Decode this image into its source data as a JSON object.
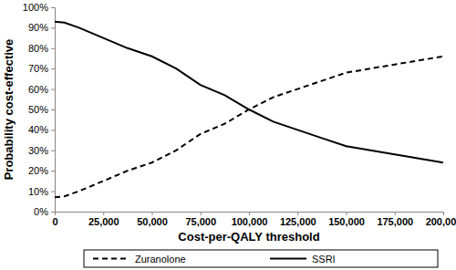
{
  "chart_data": {
    "type": "line",
    "x_label": "Cost-per-QALY threshold",
    "y_label": "Probability cost-effective",
    "x": [
      0,
      5000,
      12500,
      25000,
      37500,
      50000,
      62500,
      75000,
      87500,
      100000,
      112500,
      125000,
      137500,
      150000,
      162500,
      175000,
      187500,
      200000
    ],
    "series": [
      {
        "name": "Zuranolone",
        "color": "#000000",
        "line_style": "dashed",
        "values": [
          7,
          7.5,
          10,
          15,
          20,
          24,
          30,
          38,
          43,
          50,
          56,
          60,
          64,
          68,
          70,
          72,
          74,
          76
        ]
      },
      {
        "name": "SSRI",
        "color": "#000000",
        "line_style": "solid",
        "values": [
          93,
          92.5,
          90,
          85,
          80,
          76,
          70,
          62,
          57,
          50,
          44,
          40,
          36,
          32,
          30,
          28,
          26,
          24
        ]
      }
    ],
    "xlim": [
      0,
      200000
    ],
    "xticks": [
      0,
      {
        "value": 25000,
        "label": "25,000"
      },
      {
        "value": 50000,
        "label": "50,000"
      },
      {
        "value": 75000,
        "label": "75,000"
      },
      {
        "value": 100000,
        "label": "100,000"
      },
      {
        "value": 125000,
        "label": "125,000"
      },
      {
        "value": 150000,
        "label": "150,000"
      },
      {
        "value": 175000,
        "label": "175,000"
      },
      {
        "value": 200000,
        "label": "200,000"
      }
    ],
    "ylim": [
      0,
      100
    ],
    "yticks": [
      {
        "value": 0,
        "label": "0%"
      },
      {
        "value": 10,
        "label": "10%"
      },
      {
        "value": 20,
        "label": "20%"
      },
      {
        "value": 30,
        "label": "30%"
      },
      {
        "value": 40,
        "label": "40%"
      },
      {
        "value": 50,
        "label": "50%"
      },
      {
        "value": 60,
        "label": "60%"
      },
      {
        "value": 70,
        "label": "70%"
      },
      {
        "value": 80,
        "label": "80%"
      },
      {
        "value": 90,
        "label": "90%"
      },
      {
        "value": 100,
        "label": "100%"
      }
    ],
    "grid": false,
    "legend": "bottom"
  }
}
